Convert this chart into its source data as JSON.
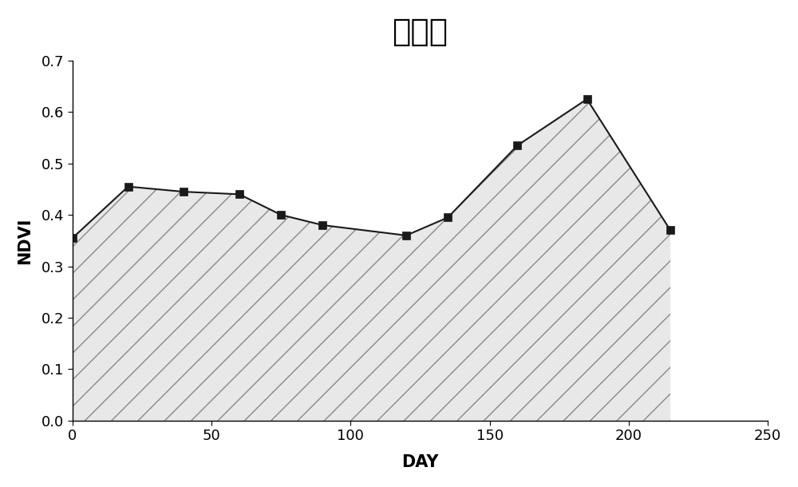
{
  "title": "冬小麦",
  "xlabel": "DAY",
  "ylabel": "NDVI",
  "x": [
    0,
    20,
    40,
    60,
    75,
    90,
    120,
    135,
    160,
    185,
    215
  ],
  "y": [
    0.355,
    0.455,
    0.445,
    0.44,
    0.4,
    0.38,
    0.36,
    0.395,
    0.535,
    0.625,
    0.37
  ],
  "xlim": [
    0,
    250
  ],
  "ylim": [
    0,
    0.7
  ],
  "xticks": [
    0,
    50,
    100,
    150,
    200,
    250
  ],
  "yticks": [
    0,
    0.1,
    0.2,
    0.3,
    0.4,
    0.5,
    0.6,
    0.7
  ],
  "line_color": "#1a1a1a",
  "marker_color": "#1a1a1a",
  "fill_facecolor": "#e8e8e8",
  "hatch": "/",
  "hatch_color": "#888888",
  "title_fontsize": 28,
  "axis_label_fontsize": 15,
  "tick_fontsize": 13,
  "marker": "s",
  "marker_size": 7,
  "line_width": 1.5,
  "background_color": "#ffffff",
  "figsize": [
    10.0,
    6.1
  ],
  "dpi": 100
}
